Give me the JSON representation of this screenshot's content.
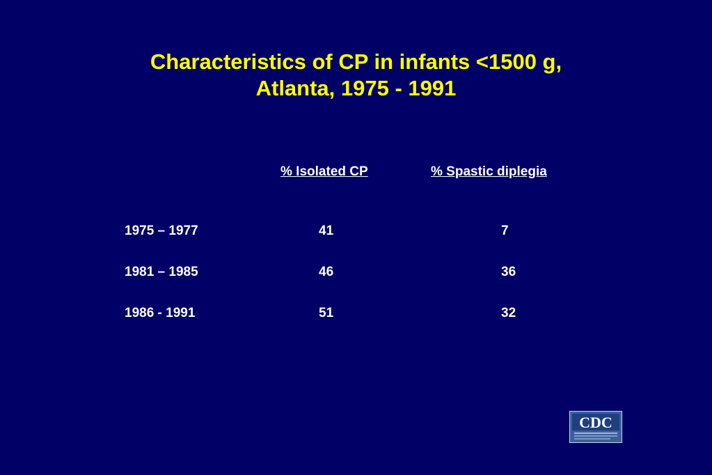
{
  "title": {
    "line1": "Characteristics of CP in infants <1500 g,",
    "line2": "Atlanta, 1975 - 1991"
  },
  "table": {
    "columns": [
      "% Isolated CP",
      "% Spastic diplegia"
    ],
    "rows": [
      {
        "period": "1975 – 1977",
        "isolated_cp": "41",
        "spastic_diplegia": "7"
      },
      {
        "period": "1981 – 1985",
        "isolated_cp": "46",
        "spastic_diplegia": "36"
      },
      {
        "period": "1986 - 1991",
        "isolated_cp": "51",
        "spastic_diplegia": "32"
      }
    ]
  },
  "logo": {
    "text": "CDC",
    "subtext": "CENTERS FOR DISEASE CONTROL AND PREVENTION",
    "icon": "cdc-logo"
  },
  "colors": {
    "background": "#000066",
    "title": "#ffff00",
    "text": "#ffffff"
  }
}
